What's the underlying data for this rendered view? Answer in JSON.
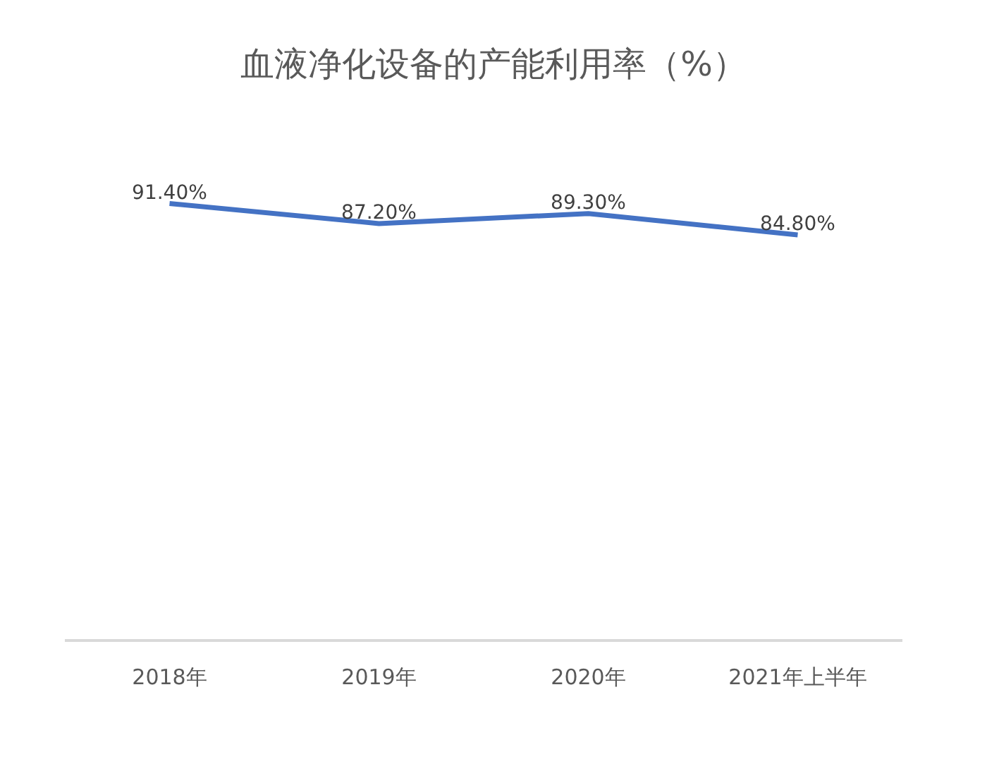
{
  "chart_data": {
    "type": "line",
    "title": "血液净化设备的产能利用率（%）",
    "categories": [
      "2018年",
      "2019年",
      "2020年",
      "2021年上半年"
    ],
    "series": [
      {
        "color": "#4472c4",
        "values": [
          91.4,
          87.2,
          89.3,
          84.8
        ],
        "value_labels": [
          "91.40%",
          "87.20%",
          "89.30%",
          "84.80%"
        ]
      }
    ],
    "tick_labels": "x",
    "marker": "none",
    "line_style": "solid"
  }
}
